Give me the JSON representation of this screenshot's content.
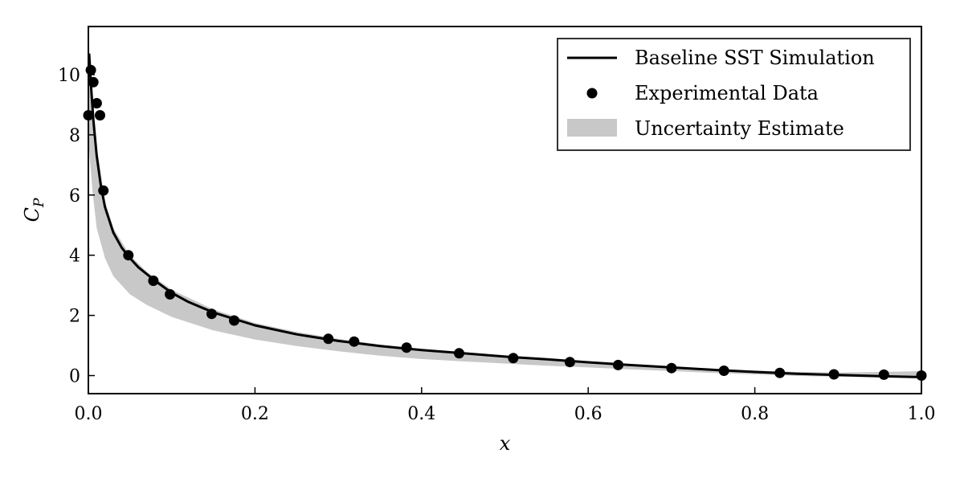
{
  "chart_data": {
    "type": "line",
    "xlabel": "x",
    "ylabel": "C",
    "ylabel_sub": "P",
    "xlim": [
      0.0,
      1.0
    ],
    "ylim": [
      -0.6,
      11.6
    ],
    "x_ticks": [
      0.0,
      0.2,
      0.4,
      0.6,
      0.8,
      1.0
    ],
    "x_tick_labels": [
      "0.0",
      "0.2",
      "0.4",
      "0.6",
      "0.8",
      "1.0"
    ],
    "y_ticks": [
      0,
      2,
      4,
      6,
      8,
      10
    ],
    "y_tick_labels": [
      "0",
      "2",
      "4",
      "6",
      "8",
      "10"
    ],
    "grid": false,
    "legend_position": "top-right",
    "series": [
      {
        "name": "Baseline SST Simulation",
        "kind": "line",
        "color": "#000000",
        "x": [
          0.001,
          0.003,
          0.006,
          0.01,
          0.015,
          0.02,
          0.03,
          0.04,
          0.05,
          0.06,
          0.08,
          0.1,
          0.12,
          0.15,
          0.2,
          0.25,
          0.3,
          0.35,
          0.4,
          0.45,
          0.5,
          0.55,
          0.6,
          0.65,
          0.7,
          0.75,
          0.8,
          0.85,
          0.9,
          0.95,
          1.0
        ],
        "y": [
          10.7,
          9.7,
          8.5,
          7.3,
          6.3,
          5.6,
          4.75,
          4.25,
          3.9,
          3.6,
          3.15,
          2.75,
          2.45,
          2.1,
          1.67,
          1.37,
          1.15,
          0.98,
          0.85,
          0.74,
          0.63,
          0.54,
          0.44,
          0.35,
          0.27,
          0.19,
          0.12,
          0.06,
          0.02,
          -0.02,
          -0.05
        ]
      },
      {
        "name": "Experimental Data",
        "kind": "scatter",
        "color": "#000000",
        "x": [
          0.0,
          0.003,
          0.006,
          0.01,
          0.014,
          0.018,
          0.048,
          0.078,
          0.098,
          0.148,
          0.175,
          0.288,
          0.319,
          0.382,
          0.445,
          0.51,
          0.578,
          0.636,
          0.7,
          0.763,
          0.83,
          0.895,
          0.955,
          1.0
        ],
        "y": [
          8.65,
          10.15,
          9.75,
          9.05,
          8.65,
          6.15,
          4.0,
          3.15,
          2.7,
          2.05,
          1.83,
          1.22,
          1.13,
          0.93,
          0.74,
          0.58,
          0.45,
          0.35,
          0.25,
          0.16,
          0.09,
          0.04,
          0.03,
          0.0
        ]
      },
      {
        "name": "Uncertainty Estimate",
        "kind": "band",
        "color": "#c8c8c8",
        "x": [
          0.0,
          0.005,
          0.01,
          0.02,
          0.03,
          0.05,
          0.07,
          0.1,
          0.15,
          0.2,
          0.25,
          0.3,
          0.35,
          0.4,
          0.45,
          0.5,
          0.55,
          0.6,
          0.65,
          0.7,
          0.75,
          0.8,
          0.85,
          0.9,
          0.95,
          1.0
        ],
        "upper": [
          11.2,
          9.4,
          7.6,
          5.8,
          4.9,
          4.0,
          3.45,
          2.85,
          2.2,
          1.75,
          1.45,
          1.22,
          1.03,
          0.88,
          0.76,
          0.65,
          0.56,
          0.47,
          0.38,
          0.3,
          0.23,
          0.17,
          0.12,
          0.1,
          0.12,
          0.15
        ],
        "lower": [
          7.8,
          6.1,
          4.9,
          3.9,
          3.3,
          2.7,
          2.35,
          1.95,
          1.5,
          1.2,
          0.98,
          0.81,
          0.66,
          0.55,
          0.47,
          0.4,
          0.33,
          0.27,
          0.21,
          0.15,
          0.09,
          0.04,
          -0.01,
          -0.04,
          -0.06,
          -0.08
        ]
      }
    ]
  }
}
